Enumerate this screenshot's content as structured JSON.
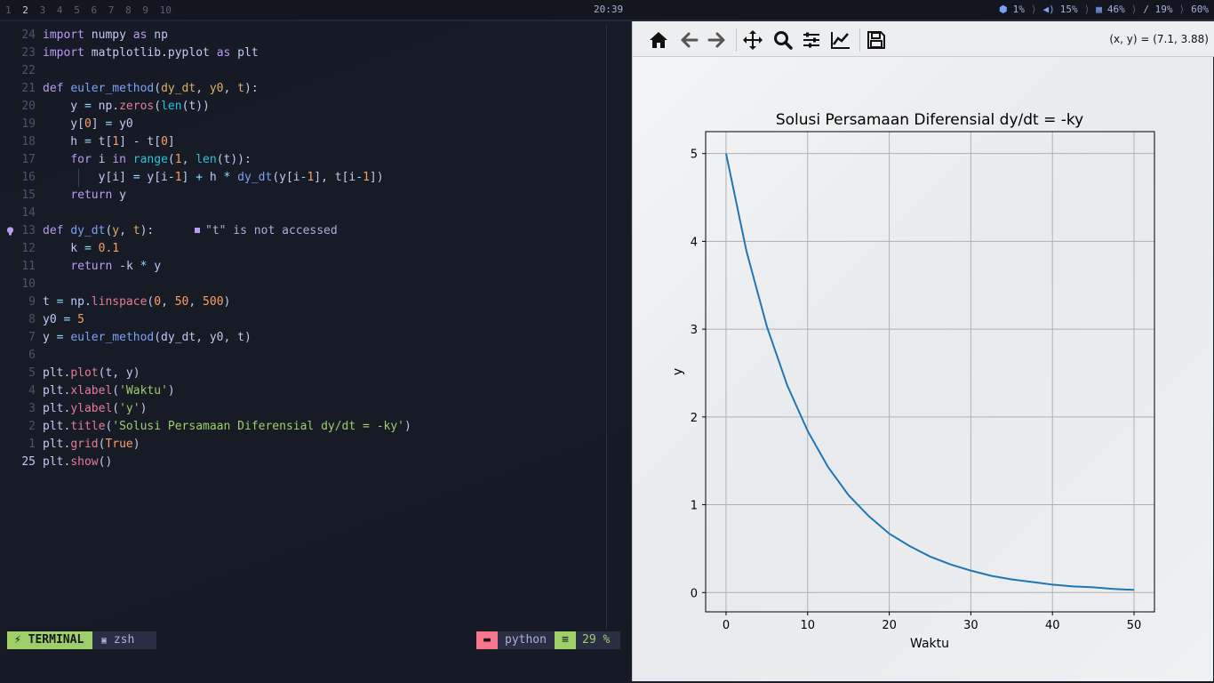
{
  "topbar": {
    "workspaces": [
      "1",
      "2",
      "3",
      "4",
      "5",
      "6",
      "7",
      "8",
      "9",
      "10"
    ],
    "active_workspace": "2",
    "clock": "20:39",
    "stats": [
      {
        "icon": "cpu-icon",
        "value": "1%"
      },
      {
        "icon": "volume-icon",
        "value": "15%"
      },
      {
        "icon": "memory-icon",
        "value": "46%"
      },
      {
        "icon": "disk-icon",
        "value": "/ 19%"
      },
      {
        "icon": "battery-icon",
        "value": "60%"
      }
    ]
  },
  "editor": {
    "lines": [
      {
        "n": "24",
        "t": "import numpy as np"
      },
      {
        "n": "23",
        "t": "import matplotlib.pyplot as plt"
      },
      {
        "n": "22",
        "t": ""
      },
      {
        "n": "21",
        "t": "def euler_method(dy_dt, y0, t):"
      },
      {
        "n": "20",
        "t": "    y = np.zeros(len(t))"
      },
      {
        "n": "19",
        "t": "    y[0] = y0"
      },
      {
        "n": "18",
        "t": "    h = t[1] - t[0]"
      },
      {
        "n": "17",
        "t": "    for i in range(1, len(t)):"
      },
      {
        "n": "16",
        "t": "        y[i] = y[i-1] + h * dy_dt(y[i-1], t[i-1])"
      },
      {
        "n": "15",
        "t": "    return y"
      },
      {
        "n": "14",
        "t": ""
      },
      {
        "n": "13",
        "t": "def dy_dt(y, t):"
      },
      {
        "n": "12",
        "t": "    k = 0.1"
      },
      {
        "n": "11",
        "t": "    return -k * y"
      },
      {
        "n": "10",
        "t": ""
      },
      {
        "n": "9",
        "t": "t = np.linspace(0, 50, 500)"
      },
      {
        "n": "8",
        "t": "y0 = 5"
      },
      {
        "n": "7",
        "t": "y = euler_method(dy_dt, y0, t)"
      },
      {
        "n": "6",
        "t": ""
      },
      {
        "n": "5",
        "t": "plt.plot(t, y)"
      },
      {
        "n": "4",
        "t": "plt.xlabel('Waktu')"
      },
      {
        "n": "3",
        "t": "plt.ylabel('y')"
      },
      {
        "n": "2",
        "t": "plt.title('Solusi Persamaan Diferensial dy/dt = -ky')"
      },
      {
        "n": "1",
        "t": "plt.grid(True)"
      },
      {
        "n": "25",
        "t": "plt.show()"
      }
    ],
    "diagnostic": "\"t\" is not accessed",
    "statusline": {
      "mode": "TERMINAL",
      "shell": "zsh",
      "filetype": "python",
      "percent": "29 %"
    }
  },
  "plot_window": {
    "toolbar": {
      "buttons": [
        {
          "name": "home-icon"
        },
        {
          "name": "back-icon"
        },
        {
          "name": "forward-icon"
        },
        {
          "name": "pan-icon"
        },
        {
          "name": "zoom-icon"
        },
        {
          "name": "subplots-icon"
        },
        {
          "name": "edit-axes-icon"
        },
        {
          "name": "save-icon"
        }
      ],
      "coords": "(x, y) = (7.1, 3.88)"
    }
  },
  "chart_data": {
    "type": "line",
    "title": "Solusi Persamaan Diferensial dy/dt = -ky",
    "xlabel": "Waktu",
    "ylabel": "y",
    "xlim": [
      -2.5,
      52.5
    ],
    "ylim": [
      -0.22,
      5.25
    ],
    "xticks": [
      0,
      10,
      20,
      30,
      40,
      50
    ],
    "yticks": [
      0,
      1,
      2,
      3,
      4,
      5
    ],
    "grid": true,
    "series": [
      {
        "color": "#1f77b4",
        "x": [
          0,
          2.5,
          5,
          7.5,
          10,
          12.5,
          15,
          17.5,
          20,
          22.5,
          25,
          27.5,
          30,
          32.5,
          35,
          37.5,
          40,
          42.5,
          45,
          47.5,
          50
        ],
        "y": [
          5.0,
          3.89,
          3.03,
          2.36,
          1.84,
          1.43,
          1.11,
          0.87,
          0.67,
          0.53,
          0.41,
          0.32,
          0.25,
          0.19,
          0.15,
          0.12,
          0.09,
          0.07,
          0.06,
          0.04,
          0.03
        ]
      }
    ]
  }
}
